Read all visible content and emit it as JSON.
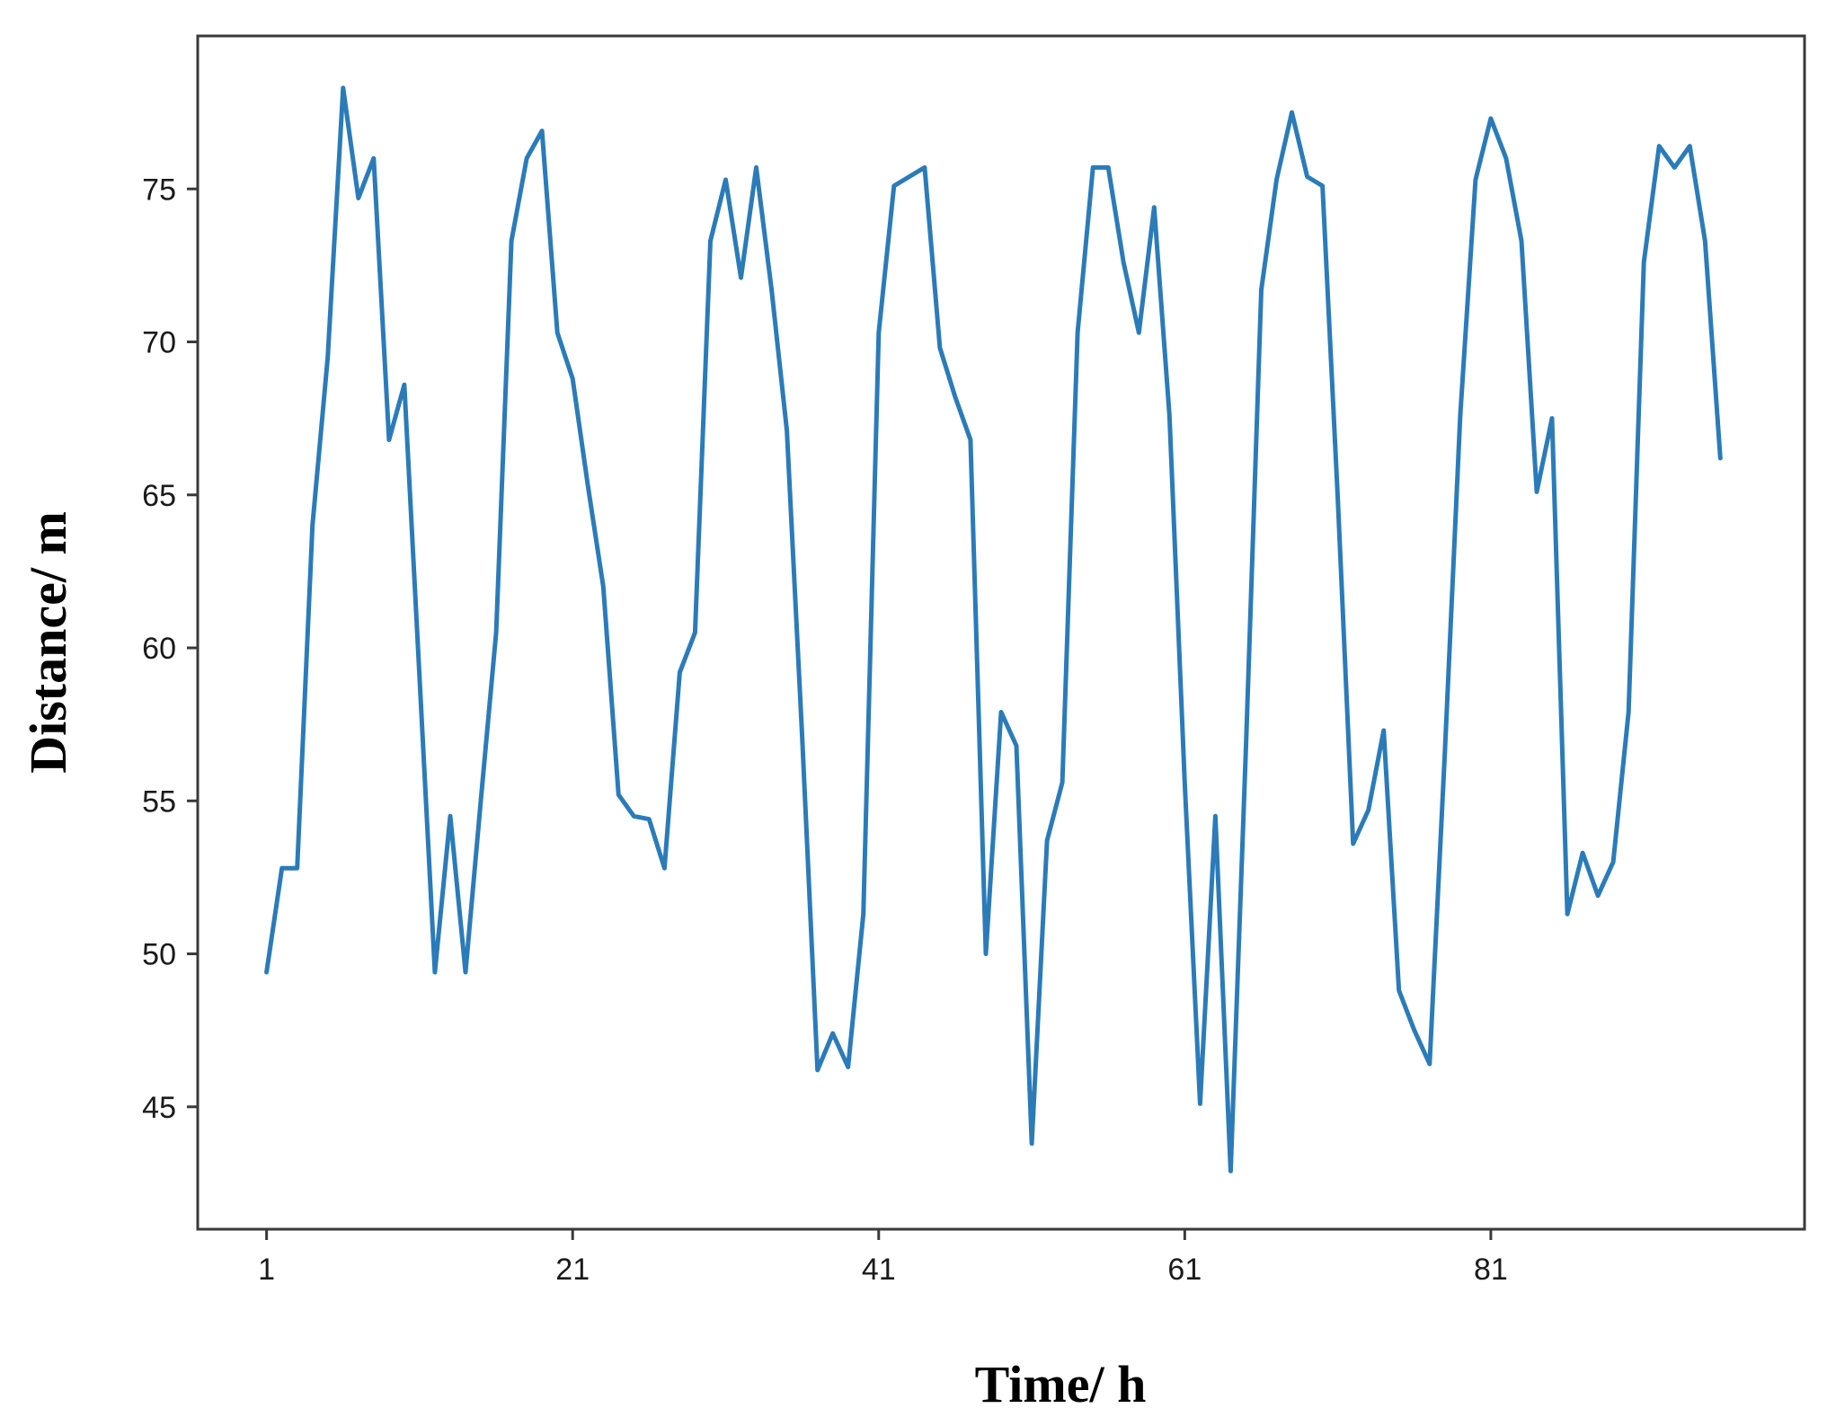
{
  "chart_data": {
    "type": "line",
    "xlabel": "Time/ h",
    "ylabel": "Distance/ m",
    "xlim": [
      -3.5,
      101.5
    ],
    "ylim": [
      41,
      80
    ],
    "x_ticks": [
      1,
      21,
      41,
      61,
      81
    ],
    "y_ticks": [
      45,
      50,
      55,
      60,
      65,
      70,
      75
    ],
    "grid": false,
    "legend": "none",
    "line_color": "#2b7bb9",
    "series": [
      {
        "x": [
          1,
          2,
          3,
          4,
          5,
          6,
          7,
          8,
          9,
          10,
          11,
          12,
          13,
          14,
          15,
          16,
          17,
          18,
          19,
          20,
          21,
          22,
          23,
          24,
          25,
          26,
          27,
          28,
          29,
          30,
          31,
          32,
          33,
          34,
          35,
          36,
          37,
          38,
          39,
          40,
          41,
          42,
          43,
          44,
          45,
          46,
          47,
          48,
          49,
          50,
          51,
          52,
          53,
          54,
          55,
          56,
          57,
          58,
          59,
          60,
          61,
          62,
          63,
          64,
          65,
          66,
          67,
          68,
          69,
          70,
          71,
          72,
          73,
          74,
          75,
          76,
          77,
          78,
          79,
          80,
          81,
          82,
          83,
          84,
          85,
          86,
          87,
          88,
          89,
          90,
          91,
          92,
          93,
          94,
          95,
          96
        ],
        "values": [
          49.4,
          52.8,
          52.8,
          64.0,
          69.5,
          78.3,
          74.7,
          76.0,
          66.8,
          68.6,
          59.0,
          49.4,
          54.5,
          49.4,
          55.0,
          60.5,
          73.3,
          76.0,
          76.9,
          70.3,
          68.8,
          65.3,
          62.0,
          55.2,
          54.5,
          54.4,
          52.8,
          59.2,
          60.5,
          73.3,
          75.3,
          72.1,
          75.7,
          71.7,
          67.1,
          57.1,
          46.2,
          47.4,
          46.3,
          51.3,
          70.3,
          75.1,
          75.4,
          75.7,
          69.8,
          68.2,
          66.8,
          50.0,
          57.9,
          56.8,
          43.8,
          53.7,
          55.6,
          70.3,
          75.7,
          75.7,
          72.6,
          70.3,
          74.4,
          67.6,
          55.6,
          45.1,
          54.5,
          42.9,
          56.8,
          71.7,
          75.3,
          77.5,
          75.4,
          75.1,
          64.9,
          53.6,
          54.7,
          57.3,
          48.8,
          47.5,
          46.4,
          56.6,
          67.6,
          75.3,
          77.3,
          76.0,
          73.3,
          65.1,
          67.5,
          51.3,
          53.3,
          51.9,
          53.0,
          57.9,
          72.6,
          76.4,
          75.7,
          76.4,
          73.3,
          66.2
        ]
      }
    ]
  }
}
